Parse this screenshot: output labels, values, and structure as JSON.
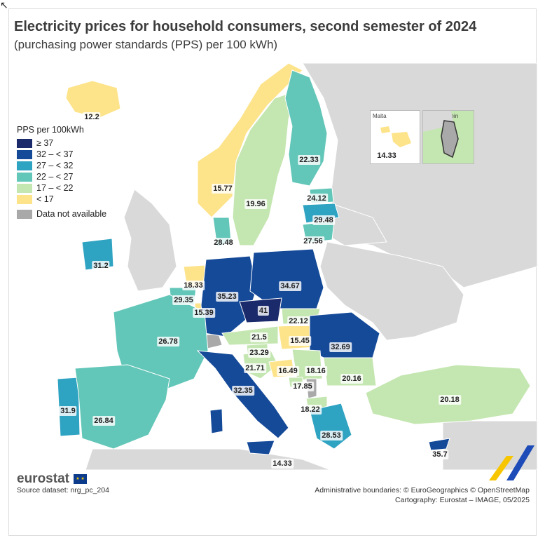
{
  "title": "Electricity prices for household consumers, second semester of 2024",
  "subtitle": "(purchasing power standards (PPS) per 100 kWh)",
  "legend": {
    "title": "PPS per 100kWh",
    "classes": [
      {
        "label": "≥ 37",
        "color": "#1b2a6b"
      },
      {
        "label": "32 – < 37",
        "color": "#154a99"
      },
      {
        "label": "27 – < 32",
        "color": "#2fa3c2"
      },
      {
        "label": "22 – < 27",
        "color": "#62c6b8"
      },
      {
        "label": "17 – < 22",
        "color": "#c4e6b0"
      },
      {
        "label": "< 17",
        "color": "#fde38a"
      }
    ],
    "na_label": "Data not available",
    "na_color": "#a9a9a9"
  },
  "values": {
    "IS": "12.2",
    "NO": "15.77",
    "SE": "19.96",
    "FI": "22.33",
    "EE": "24.12",
    "LV": "29.48",
    "LT": "27.56",
    "DK": "28.48",
    "IE": "31.2",
    "NL": "18.33",
    "BE": "29.35",
    "LU": "15.39",
    "DE": "35.23",
    "PL": "34.67",
    "CZ": "41",
    "SK": "22.12",
    "AT": "21.5",
    "HU": "15.45",
    "RO": "32.69",
    "FR": "26.78",
    "SI": "23.29",
    "HR": "21.71",
    "BA": "16.49",
    "RS": "18.16",
    "ME": "17.85",
    "BG": "20.16",
    "MK": "18.22",
    "TR": "20.18",
    "IT": "32.35",
    "PT": "31.9",
    "ES": "26.84",
    "EL": "28.53",
    "MT": "14.33",
    "CY": "35.7",
    "MT_main": "14.33"
  },
  "insets": {
    "malta": "Malta",
    "liechtenstein": "Liechtenstein"
  },
  "footer": {
    "brand": "eurostat",
    "source": "Source dataset: nrg_pc_204",
    "credit1": "Administrative boundaries: © EuroGeographics © OpenStreetMap",
    "credit2": "Cartography: Eurostat – IMAGE, 05/2025"
  }
}
